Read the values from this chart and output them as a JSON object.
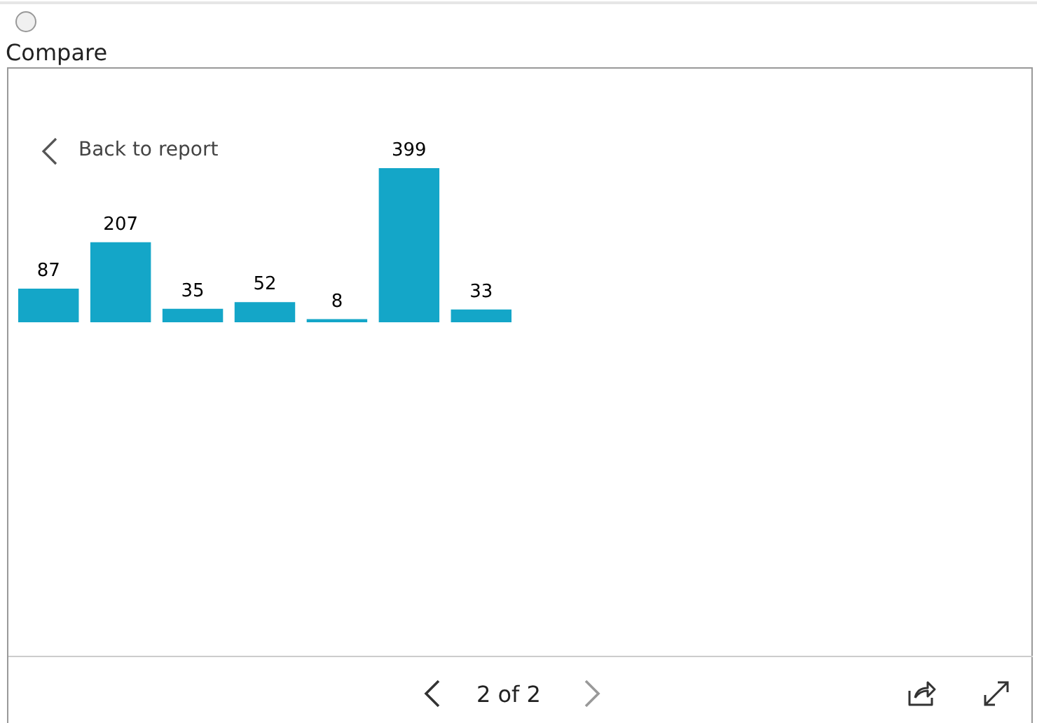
{
  "chart_data": {
    "type": "bar",
    "categories": [
      null,
      null,
      null,
      null,
      null,
      null,
      null
    ],
    "values": [
      87,
      207,
      35,
      52,
      8,
      399,
      33
    ],
    "color": "#14a6c8",
    "data_labels": true,
    "tick_labels": false,
    "annotations": [
      "Compare",
      "Back to report",
      "2 of 2"
    ]
  }
}
